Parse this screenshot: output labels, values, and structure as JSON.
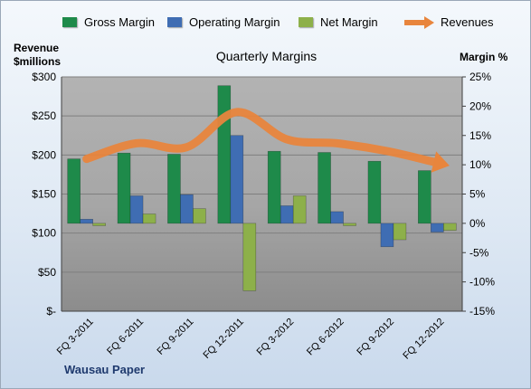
{
  "legend": {
    "gross": "Gross Margin",
    "operating": "Operating Margin",
    "net": "Net Margin",
    "revenues": "Revenues"
  },
  "axes": {
    "left_title_line1": "Revenue",
    "left_title_line2": "$millions",
    "right_title": "Margin %"
  },
  "footer": "Wausau Paper",
  "colors": {
    "gross": "#1e8a4a",
    "operating": "#3f6db3",
    "net": "#8db04a",
    "revenues": "#e8853d",
    "plot_gray": "#a6a6a6"
  },
  "chart_data": {
    "type": "bar",
    "title": "Quarterly Margins",
    "categories": [
      "FQ 3-2011",
      "FQ 6-2011",
      "FQ 9-2011",
      "FQ 12-2011",
      "FQ 3-2012",
      "FQ 6-2012",
      "FQ 9-2012",
      "FQ 12-2012"
    ],
    "series": [
      {
        "name": "Gross Margin",
        "type": "bar",
        "axis": "right",
        "values": [
          11,
          12,
          11.8,
          23.5,
          12.3,
          12.1,
          10.6,
          9
        ]
      },
      {
        "name": "Operating Margin",
        "type": "bar",
        "axis": "right",
        "values": [
          0.7,
          4.7,
          4.9,
          15,
          3,
          2,
          -4,
          -1.5
        ]
      },
      {
        "name": "Net Margin",
        "type": "bar",
        "axis": "right",
        "values": [
          -0.4,
          1.6,
          2.5,
          -11.5,
          4.7,
          -0.4,
          -2.8,
          -1.2
        ]
      },
      {
        "name": "Revenues",
        "type": "line",
        "axis": "left",
        "values": [
          195,
          215,
          210,
          255,
          220,
          215,
          205,
          190
        ]
      }
    ],
    "y_left": {
      "label": "Revenue $millions",
      "ylim": [
        0,
        300
      ],
      "ticks": [
        "$-",
        "$50",
        "$100",
        "$150",
        "$200",
        "$250",
        "$300"
      ]
    },
    "y_right": {
      "label": "Margin %",
      "ylim": [
        -15,
        25
      ],
      "ticks": [
        "-15%",
        "-10%",
        "-5%",
        "0%",
        "5%",
        "10%",
        "15%",
        "20%",
        "25%"
      ]
    },
    "grid": true,
    "legend_position": "top"
  }
}
